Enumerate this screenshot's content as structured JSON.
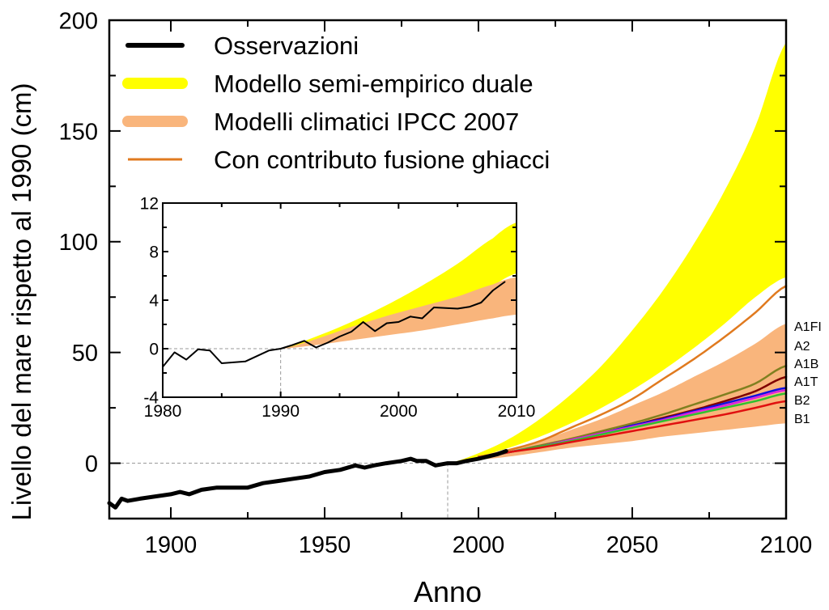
{
  "chart_data": [
    {
      "id": "main",
      "type": "area",
      "title": "",
      "xlabel": "Anno",
      "ylabel": "Livello del mare rispetto al 1990 (cm)",
      "xlim": [
        1880,
        2100
      ],
      "ylim": [
        -25,
        200
      ],
      "xticks": [
        1900,
        1950,
        2000,
        2050,
        2100
      ],
      "xtick_labels": [
        "1900",
        "1950",
        "2000",
        "2050",
        "2100"
      ],
      "xminor": [
        1925,
        1975,
        2025,
        2075
      ],
      "yticks": [
        0,
        50,
        100,
        150,
        200
      ],
      "ytick_labels": [
        "0",
        "50",
        "100",
        "150",
        "200"
      ],
      "yminor": [
        25,
        75,
        125,
        175
      ],
      "grid": false,
      "legend_position": "top-left",
      "legend": [
        {
          "label": "Osservazioni",
          "color": "#000000",
          "style": "thick-line"
        },
        {
          "label": "Modello semi-empirico duale",
          "color": "#ffff00",
          "style": "band"
        },
        {
          "label": "Modelli climatici IPCC 2007",
          "color": "#f9b57c",
          "style": "band"
        },
        {
          "label": "Con contributo fusione ghiacci",
          "color": "#e07a1f",
          "style": "thin-line"
        }
      ],
      "reference_lines": [
        {
          "axis": "y",
          "value": 0,
          "style": "dashed"
        },
        {
          "axis": "x",
          "value": 1990,
          "style": "dashed"
        }
      ],
      "bands": [
        {
          "name": "Modello semi-empirico duale",
          "color": "#ffff00",
          "x": [
            1990,
            2000,
            2010,
            2020,
            2030,
            2040,
            2050,
            2060,
            2070,
            2080,
            2090,
            2100
          ],
          "lower": [
            0,
            3,
            7,
            12,
            18,
            25,
            33,
            42,
            52,
            63,
            75,
            84
          ],
          "upper": [
            0,
            4.5,
            11,
            20,
            31,
            44,
            60,
            78,
            99,
            123,
            152,
            190
          ]
        },
        {
          "name": "Modelli climatici IPCC 2007",
          "color": "#f9b57c",
          "x": [
            1990,
            2000,
            2010,
            2020,
            2030,
            2040,
            2050,
            2060,
            2070,
            2080,
            2090,
            2100
          ],
          "lower": [
            0,
            1.5,
            3,
            5,
            7,
            8.5,
            10,
            12,
            13.5,
            15,
            16.5,
            18
          ],
          "upper": [
            0,
            3,
            6,
            10,
            15,
            20,
            26,
            32,
            39,
            46,
            54,
            63
          ]
        }
      ],
      "series": [
        {
          "name": "Con contributo fusione ghiacci",
          "color": "#e07a1f",
          "x": [
            2000,
            2010,
            2020,
            2030,
            2040,
            2050,
            2060,
            2070,
            2080,
            2090,
            2100
          ],
          "values": [
            3,
            6,
            10,
            16,
            22,
            29,
            38,
            47,
            57,
            68,
            80
          ]
        },
        {
          "name": "A1FI",
          "color": "#808020",
          "x": [
            2000,
            2010,
            2020,
            2030,
            2040,
            2050,
            2060,
            2070,
            2080,
            2090,
            2100
          ],
          "values": [
            2.5,
            5,
            8,
            11,
            14.5,
            18,
            22,
            26.5,
            31,
            36,
            44
          ]
        },
        {
          "name": "A2",
          "color": "#800000",
          "x": [
            2000,
            2010,
            2020,
            2030,
            2040,
            2050,
            2060,
            2070,
            2080,
            2090,
            2100
          ],
          "values": [
            2.5,
            5,
            7.5,
            10.5,
            13.5,
            17,
            20.5,
            24,
            28,
            32.5,
            39
          ]
        },
        {
          "name": "A1B",
          "color": "#1010e0",
          "x": [
            2000,
            2010,
            2020,
            2030,
            2040,
            2050,
            2060,
            2070,
            2080,
            2090,
            2100
          ],
          "values": [
            2.5,
            5,
            7.5,
            10.5,
            13.5,
            17,
            20,
            23.5,
            27,
            30.5,
            34
          ]
        },
        {
          "name": "A1T",
          "color": "#e020e0",
          "x": [
            2000,
            2010,
            2020,
            2030,
            2040,
            2050,
            2060,
            2070,
            2080,
            2090,
            2100
          ],
          "values": [
            2.5,
            5,
            7.5,
            10.5,
            13.5,
            16.5,
            19.5,
            23,
            26,
            29.5,
            33
          ]
        },
        {
          "name": "B2",
          "color": "#30c030",
          "x": [
            2000,
            2010,
            2020,
            2030,
            2040,
            2050,
            2060,
            2070,
            2080,
            2090,
            2100
          ],
          "values": [
            2.5,
            5,
            7.5,
            10,
            13,
            16,
            19,
            22,
            25,
            28,
            31.5
          ]
        },
        {
          "name": "B1",
          "color": "#e01010",
          "x": [
            2000,
            2010,
            2020,
            2030,
            2040,
            2050,
            2060,
            2070,
            2080,
            2090,
            2100
          ],
          "values": [
            2.5,
            5,
            7,
            9.5,
            12,
            14.5,
            17,
            19.5,
            22,
            25,
            28
          ]
        },
        {
          "name": "Osservazioni",
          "color": "#000000",
          "x": [
            1880,
            1882,
            1884,
            1886,
            1890,
            1895,
            1900,
            1903,
            1906,
            1910,
            1915,
            1920,
            1925,
            1930,
            1935,
            1940,
            1945,
            1950,
            1955,
            1960,
            1963,
            1966,
            1970,
            1975,
            1978,
            1980,
            1983,
            1986,
            1990,
            1993,
            1996,
            2000,
            2003,
            2006,
            2009
          ],
          "values": [
            -18,
            -20,
            -16,
            -17,
            -16,
            -15,
            -14,
            -13,
            -14,
            -12,
            -11,
            -11,
            -11,
            -9,
            -8,
            -7,
            -6,
            -4,
            -3,
            -1,
            -2,
            -1,
            0,
            1,
            2,
            1,
            1,
            -1,
            0,
            0,
            1,
            2,
            3,
            4,
            5.5
          ]
        }
      ],
      "scenario_labels": [
        {
          "label": "A1FI",
          "color": "#808020"
        },
        {
          "label": "A2",
          "color": "#800000"
        },
        {
          "label": "A1B",
          "color": "#1010e0"
        },
        {
          "label": "A1T",
          "color": "#e020e0"
        },
        {
          "label": "B2",
          "color": "#30c030"
        },
        {
          "label": "B1",
          "color": "#e01010"
        }
      ]
    },
    {
      "id": "inset",
      "type": "area",
      "xlim": [
        1980,
        2010
      ],
      "ylim": [
        -4,
        12
      ],
      "xticks": [
        1980,
        1990,
        2000,
        2010
      ],
      "xtick_labels": [
        "1980",
        "1990",
        "2000",
        "2010"
      ],
      "xminor": [
        1985,
        1995,
        2005
      ],
      "yticks": [
        -4,
        0,
        4,
        8,
        12
      ],
      "ytick_labels": [
        "-4",
        "0",
        "4",
        "8",
        "12"
      ],
      "yminor": [
        -2,
        2,
        6,
        10
      ],
      "reference_lines": [
        {
          "axis": "y",
          "value": 0,
          "style": "dashed"
        },
        {
          "axis": "x",
          "value": 1990,
          "style": "dashed"
        }
      ],
      "bands": [
        {
          "name": "Modello semi-empirico duale",
          "color": "#ffff00",
          "x": [
            1990,
            1993,
            1996,
            1999,
            2002,
            2005,
            2008,
            2010
          ],
          "lower": [
            0,
            0.5,
            1.2,
            2.0,
            2.9,
            3.9,
            5.2,
            6.2
          ],
          "upper": [
            0,
            1.0,
            2.2,
            3.6,
            5.2,
            7.0,
            9.1,
            10.4
          ]
        },
        {
          "name": "Modelli climatici IPCC 2007",
          "color": "#f9b57c",
          "x": [
            1990,
            1993,
            1996,
            1999,
            2002,
            2005,
            2008,
            2010
          ],
          "lower": [
            0,
            0.3,
            0.7,
            1.1,
            1.5,
            2.0,
            2.5,
            2.8
          ],
          "upper": [
            0,
            0.8,
            1.8,
            2.7,
            3.5,
            4.3,
            5.3,
            5.9
          ]
        }
      ],
      "series": [
        {
          "name": "Osservazioni",
          "color": "#000000",
          "x": [
            1980,
            1981,
            1982,
            1983,
            1984,
            1985,
            1987,
            1989,
            1990,
            1991,
            1992,
            1993,
            1994,
            1995,
            1996,
            1997,
            1998,
            1999,
            2000,
            2001,
            2002,
            2003,
            2005,
            2006,
            2007,
            2008,
            2009
          ],
          "values": [
            -1.5,
            -0.3,
            -0.9,
            -0.05,
            -0.15,
            -1.2,
            -1.05,
            -0.15,
            0.0,
            0.3,
            0.65,
            0.1,
            0.5,
            1.0,
            1.4,
            2.2,
            1.45,
            2.1,
            2.2,
            2.65,
            2.5,
            3.4,
            3.3,
            3.45,
            3.8,
            4.8,
            5.5
          ]
        }
      ]
    }
  ]
}
